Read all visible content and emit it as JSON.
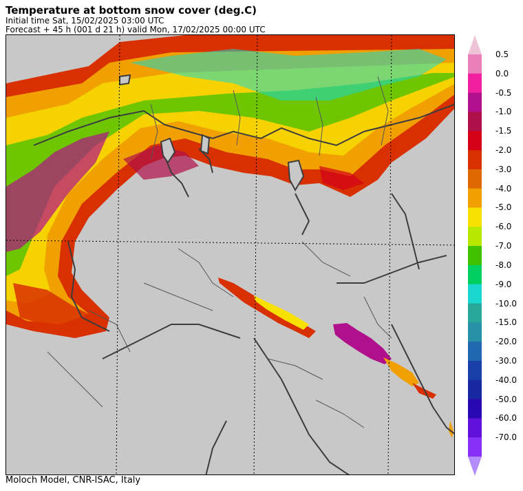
{
  "header": {
    "title": "Temperature at bottom snow cover (deg.C)",
    "initial_time": "Initial time  Sat, 15/02/2025  03:00 UTC",
    "forecast": "Forecast  +  45 h  (001 d 21 h)  valid Mon, 17/02/2025 00:00 UTC"
  },
  "footer": {
    "credit": "Moloch Model, CNR-ISAC, Italy"
  },
  "map": {
    "background_color": "#c8c8c8",
    "border_color": "#3c3c3c",
    "gridline_color": "#000000"
  },
  "colorbar": {
    "labels": [
      "0.5",
      "0.0",
      "-0.5",
      "-1.0",
      "-1.5",
      "-2.0",
      "-3.0",
      "-4.0",
      "-5.0",
      "-6.0",
      "-7.0",
      "-8.0",
      "-9.0",
      "-10.0",
      "-15.0",
      "-20.0",
      "-30.0",
      "-40.0",
      "-50.0",
      "-60.0",
      "-70.0"
    ],
    "over_color": "#f0c4d8",
    "under_color": "#b38cff",
    "colors": [
      "#e87fb8",
      "#f020a0",
      "#b0108c",
      "#b0104a",
      "#d40018",
      "#d83000",
      "#e06800",
      "#f0a000",
      "#f8e000",
      "#b8e800",
      "#40c000",
      "#00d060",
      "#18d8d0",
      "#28a898",
      "#2890a8",
      "#2068b0",
      "#1840a8",
      "#1828a0",
      "#2808b0",
      "#6010d8",
      "#8830f8"
    ]
  }
}
